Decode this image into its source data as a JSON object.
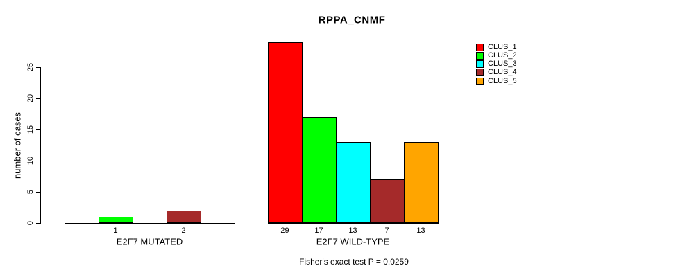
{
  "title": "RPPA_CNMF",
  "chart_data": {
    "type": "bar",
    "title": "RPPA_CNMF",
    "xlabel": "",
    "ylabel": "number of cases",
    "ylim": [
      0,
      25
    ],
    "yticks": [
      0,
      5,
      10,
      15,
      20,
      25
    ],
    "grid": false,
    "legend": {
      "position": "top-right",
      "entries": [
        {
          "label": "CLUS_1",
          "color": "#FF0000"
        },
        {
          "label": "CLUS_2",
          "color": "#00FF00"
        },
        {
          "label": "CLUS_3",
          "color": "#00FFFF"
        },
        {
          "label": "CLUS_4",
          "color": "#A52A2A"
        },
        {
          "label": "CLUS_5",
          "color": "#FFA500"
        }
      ]
    },
    "groups": [
      {
        "label": "E2F7 MUTATED",
        "series": [
          "CLUS_1",
          "CLUS_2",
          "CLUS_3",
          "CLUS_4",
          "CLUS_5"
        ],
        "values": [
          0,
          1,
          0,
          2,
          0
        ],
        "bar_labels": [
          "",
          "1",
          "",
          "2",
          ""
        ]
      },
      {
        "label": "E2F7 WILD-TYPE",
        "series": [
          "CLUS_1",
          "CLUS_2",
          "CLUS_3",
          "CLUS_4",
          "CLUS_5"
        ],
        "values": [
          29,
          17,
          13,
          7,
          13
        ],
        "bar_labels": [
          "29",
          "17",
          "13",
          "7",
          "13"
        ]
      }
    ],
    "annotation": "Fisher's exact test P = 0.0259"
  }
}
